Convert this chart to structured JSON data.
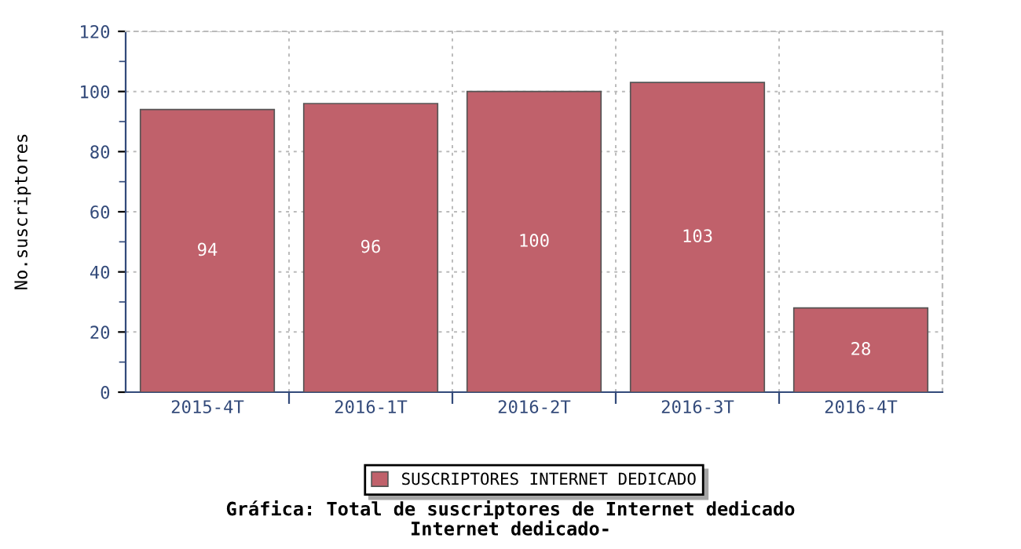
{
  "chart_data": {
    "type": "bar",
    "title": "Gráfica: Total de suscriptores de Internet dedicado",
    "subtitle": "Internet dedicado-",
    "ylabel": "No.suscriptores",
    "categories": [
      "2015-4T",
      "2016-1T",
      "2016-2T",
      "2016-3T",
      "2016-4T"
    ],
    "series": [
      {
        "name": "SUSCRIPTORES INTERNET DEDICADO",
        "color": "#c0616b",
        "values": [
          94,
          96,
          100,
          103,
          28
        ]
      }
    ],
    "ylim": [
      0,
      120
    ],
    "yticks": [
      0,
      20,
      40,
      60,
      80,
      100,
      120
    ],
    "grid": true,
    "legend": "bottom",
    "data_labels": true
  }
}
